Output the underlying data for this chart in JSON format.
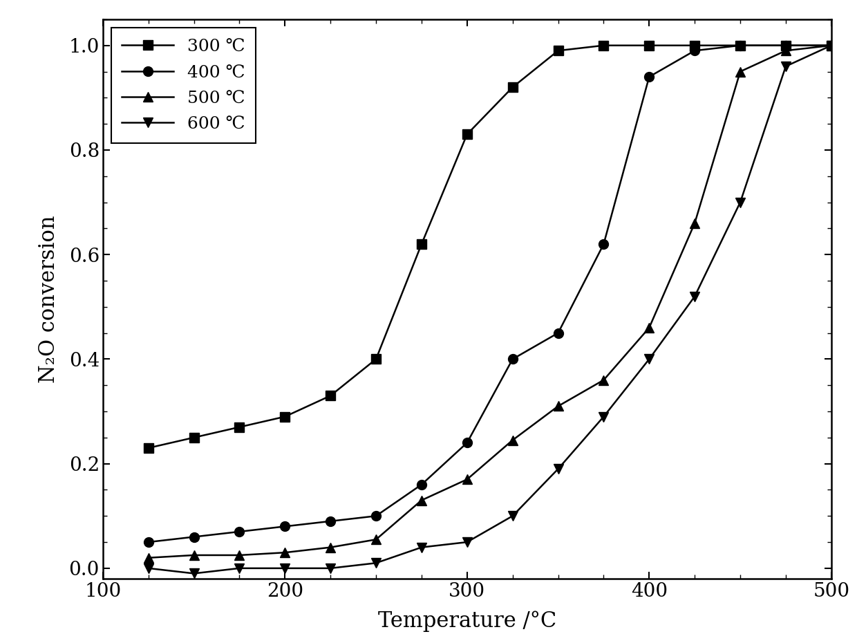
{
  "series": [
    {
      "label": "300 ℃",
      "marker": "s",
      "temp_x": [
        125,
        150,
        175,
        200,
        225,
        250,
        275,
        300,
        325,
        350,
        375,
        400,
        425,
        450,
        475,
        500
      ],
      "conv_y": [
        0.23,
        0.25,
        0.27,
        0.29,
        0.33,
        0.4,
        0.62,
        0.83,
        0.92,
        0.99,
        1.0,
        1.0,
        1.0,
        1.0,
        1.0,
        1.0
      ]
    },
    {
      "label": "400 ℃",
      "marker": "o",
      "temp_x": [
        125,
        150,
        175,
        200,
        225,
        250,
        275,
        300,
        325,
        350,
        375,
        400,
        425,
        450,
        475,
        500
      ],
      "conv_y": [
        0.05,
        0.06,
        0.07,
        0.08,
        0.09,
        0.1,
        0.16,
        0.24,
        0.4,
        0.45,
        0.62,
        0.94,
        0.99,
        1.0,
        1.0,
        1.0
      ]
    },
    {
      "label": "500 ℃",
      "marker": "^",
      "temp_x": [
        125,
        150,
        175,
        200,
        225,
        250,
        275,
        300,
        325,
        350,
        375,
        400,
        425,
        450,
        475,
        500
      ],
      "conv_y": [
        0.02,
        0.025,
        0.025,
        0.03,
        0.04,
        0.055,
        0.13,
        0.17,
        0.245,
        0.31,
        0.36,
        0.46,
        0.66,
        0.95,
        0.99,
        1.0
      ]
    },
    {
      "label": "600 ℃",
      "marker": "v",
      "temp_x": [
        125,
        150,
        175,
        200,
        225,
        250,
        275,
        300,
        325,
        350,
        375,
        400,
        425,
        450,
        475,
        500
      ],
      "conv_y": [
        0.0,
        -0.01,
        0.0,
        0.0,
        0.0,
        0.01,
        0.04,
        0.05,
        0.1,
        0.19,
        0.29,
        0.4,
        0.52,
        0.7,
        0.96,
        1.0
      ]
    }
  ],
  "xlabel": "Temperature /°C",
  "ylabel": "N₂O conversion",
  "xlim": [
    100,
    500
  ],
  "ylim": [
    -0.02,
    1.05
  ],
  "xticks": [
    100,
    200,
    300,
    400,
    500
  ],
  "yticks": [
    0.0,
    0.2,
    0.4,
    0.6,
    0.8,
    1.0
  ],
  "line_color": "#000000",
  "marker_size": 10,
  "line_width": 1.8,
  "legend_fontsize": 18,
  "axis_label_fontsize": 22,
  "tick_fontsize": 20,
  "background_color": "#ffffff"
}
